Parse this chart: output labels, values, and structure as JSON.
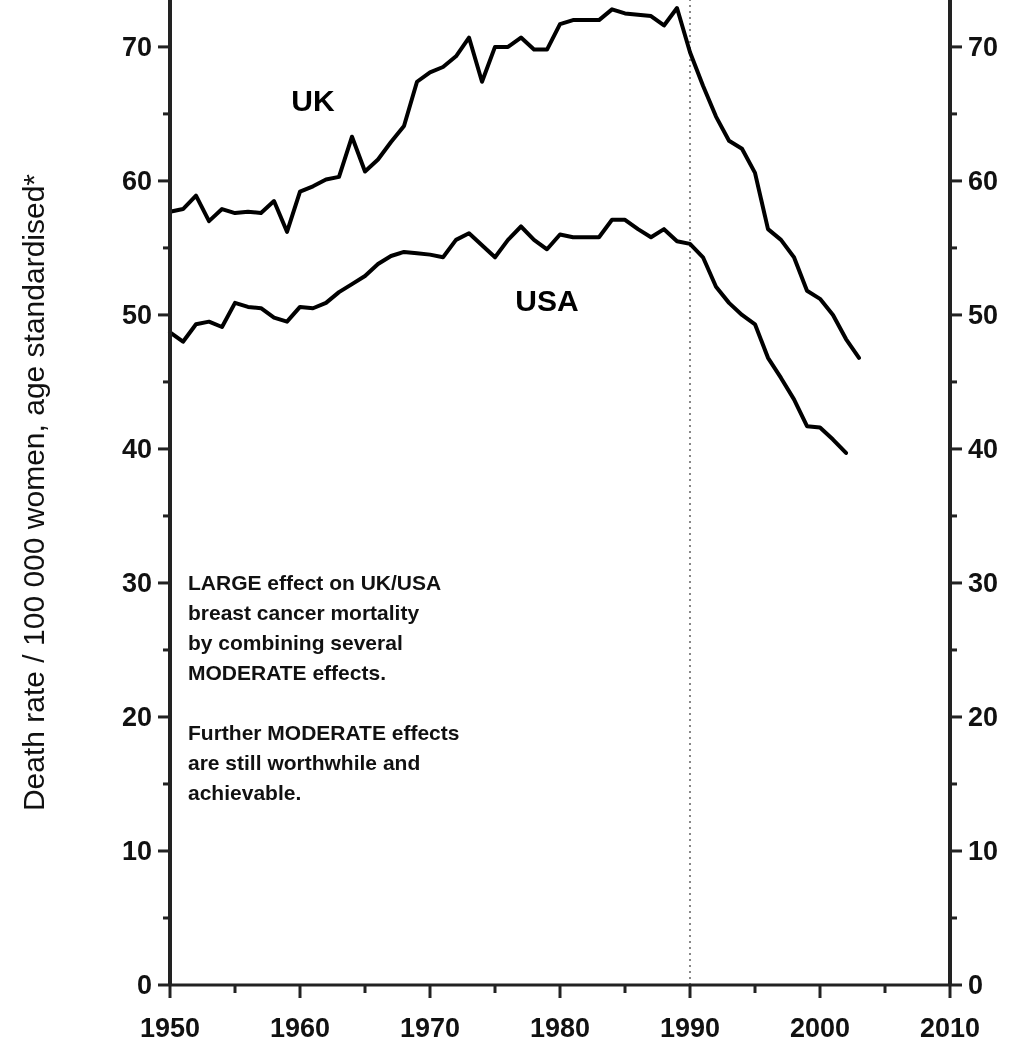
{
  "chart_data": {
    "type": "line",
    "ylabel": "Death rate / 100 000 women, age standardised*",
    "x": [
      1950,
      1951,
      1952,
      1953,
      1954,
      1955,
      1956,
      1957,
      1958,
      1959,
      1960,
      1961,
      1962,
      1963,
      1964,
      1965,
      1966,
      1967,
      1968,
      1969,
      1970,
      1971,
      1972,
      1973,
      1974,
      1975,
      1976,
      1977,
      1978,
      1979,
      1980,
      1981,
      1982,
      1983,
      1984,
      1985,
      1986,
      1987,
      1988,
      1989,
      1990,
      1991,
      1992,
      1993,
      1994,
      1995,
      1996,
      1997,
      1998,
      1999,
      2000,
      2001,
      2002,
      2003
    ],
    "series": [
      {
        "name": "UK",
        "color": "#000000",
        "values": [
          57.7,
          57.9,
          58.9,
          57.0,
          57.9,
          57.6,
          57.7,
          57.6,
          58.5,
          56.2,
          59.2,
          59.6,
          60.1,
          60.3,
          63.3,
          60.7,
          61.6,
          62.9,
          64.1,
          67.4,
          68.1,
          68.5,
          69.3,
          70.7,
          67.4,
          70.0,
          70.0,
          70.7,
          69.8,
          69.8,
          71.7,
          72.0,
          72.0,
          72.0,
          72.8,
          72.5,
          72.4,
          72.3,
          71.6,
          72.9,
          69.6,
          67.1,
          64.8,
          63.0,
          62.4,
          60.6,
          56.4,
          55.6,
          54.3,
          51.8,
          51.2,
          50.0,
          48.2,
          46.8
        ]
      },
      {
        "name": "USA",
        "color": "#000000",
        "values": [
          48.7,
          48.0,
          49.3,
          49.5,
          49.1,
          50.9,
          50.6,
          50.5,
          49.8,
          49.5,
          50.6,
          50.5,
          50.9,
          51.7,
          52.3,
          52.9,
          53.8,
          54.4,
          54.7,
          54.6,
          54.5,
          54.3,
          55.6,
          56.1,
          55.2,
          54.3,
          55.6,
          56.6,
          55.6,
          54.9,
          56.0,
          55.8,
          55.8,
          55.8,
          57.1,
          57.1,
          56.4,
          55.8,
          56.4,
          55.5,
          55.3,
          54.3,
          52.1,
          50.9,
          50.0,
          49.3,
          46.8,
          45.3,
          43.7,
          41.7,
          41.6,
          40.7,
          39.7,
          null
        ]
      }
    ],
    "xlim": [
      1950,
      2010
    ],
    "xticks": [
      1950,
      {
        "value": 1955,
        "label": null
      },
      1960,
      {
        "value": 1965,
        "label": null
      },
      1970,
      {
        "value": 1975,
        "label": null
      },
      1980,
      {
        "value": 1985,
        "label": null
      },
      1990,
      {
        "value": 1995,
        "label": null
      },
      2000,
      {
        "value": 2005,
        "label": null
      },
      2010
    ],
    "ylim": [
      0,
      73.5
    ],
    "yticks": [
      0,
      {
        "value": 5,
        "label": null
      },
      10,
      {
        "value": 15,
        "label": null
      },
      20,
      {
        "value": 25,
        "label": null
      },
      30,
      {
        "value": 35,
        "label": null
      },
      40,
      {
        "value": 45,
        "label": null
      },
      50,
      {
        "value": 55,
        "label": null
      },
      60,
      {
        "value": 65,
        "label": null
      },
      70
    ],
    "y2lim": [
      0,
      73.5
    ],
    "y2ticks": [
      0,
      {
        "value": 5,
        "label": null
      },
      10,
      {
        "value": 15,
        "label": null
      },
      20,
      {
        "value": 25,
        "label": null
      },
      30,
      {
        "value": 35,
        "label": null
      },
      40,
      {
        "value": 45,
        "label": null
      },
      50,
      {
        "value": 55,
        "label": null
      },
      60,
      {
        "value": 65,
        "label": null
      },
      70
    ],
    "ref_lines": [
      {
        "axis": "x",
        "value": 1990,
        "color": "#888888",
        "line_style": "dotted"
      }
    ],
    "annotations": [
      "LARGE effect on UK/USA breast cancer mortality by combining several MODERATE effects.",
      "Further MODERATE effects are still worthwhile and achievable."
    ],
    "grid": false,
    "marker": "none",
    "line_style": "solid"
  }
}
